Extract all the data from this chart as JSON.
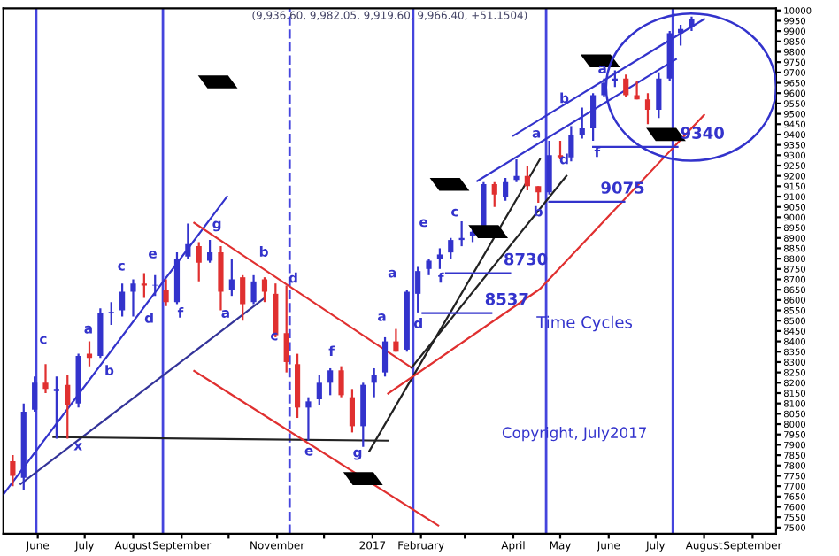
{
  "chart_data": {
    "type": "candlestick",
    "title": "(9,936.60, 9,982.05, 9,919.60, 9,966.40, +51.1504)",
    "x": [
      "2016-05-16",
      "2016-05-23",
      "2016-05-30",
      "2016-06-06",
      "2016-06-13",
      "2016-06-20",
      "2016-06-27",
      "2016-07-04",
      "2016-07-11",
      "2016-07-18",
      "2016-07-25",
      "2016-08-01",
      "2016-08-08",
      "2016-08-15",
      "2016-08-22",
      "2016-08-29",
      "2016-09-05",
      "2016-09-12",
      "2016-09-19",
      "2016-09-26",
      "2016-10-03",
      "2016-10-10",
      "2016-10-17",
      "2016-10-24",
      "2016-10-31",
      "2016-11-07",
      "2016-11-14",
      "2016-11-21",
      "2016-11-28",
      "2016-12-05",
      "2016-12-12",
      "2016-12-19",
      "2016-12-26",
      "2017-01-02",
      "2017-01-09",
      "2017-01-16",
      "2017-01-23",
      "2017-01-30",
      "2017-02-06",
      "2017-02-13",
      "2017-02-20",
      "2017-02-27",
      "2017-03-06",
      "2017-03-13",
      "2017-03-20",
      "2017-03-27",
      "2017-04-03",
      "2017-04-10",
      "2017-04-17",
      "2017-04-24",
      "2017-05-01",
      "2017-05-08",
      "2017-05-15",
      "2017-05-22",
      "2017-05-29",
      "2017-06-05",
      "2017-06-12",
      "2017-06-19",
      "2017-06-26",
      "2017-07-03",
      "2017-07-10",
      "2017-07-17",
      "2017-07-24"
    ],
    "ohlc": [
      [
        7820,
        7850,
        7700,
        7750
      ],
      [
        7740,
        8100,
        7680,
        8060
      ],
      [
        8070,
        8230,
        8060,
        8200
      ],
      [
        8200,
        8290,
        8150,
        8170
      ],
      [
        8160,
        8230,
        7930,
        8170
      ],
      [
        8190,
        8240,
        7930,
        8090
      ],
      [
        8100,
        8340,
        8080,
        8330
      ],
      [
        8340,
        8400,
        8280,
        8320
      ],
      [
        8330,
        8560,
        8320,
        8540
      ],
      [
        8540,
        8590,
        8480,
        8540
      ],
      [
        8550,
        8680,
        8520,
        8640
      ],
      [
        8640,
        8700,
        8520,
        8680
      ],
      [
        8680,
        8730,
        8610,
        8670
      ],
      [
        8670,
        8720,
        8620,
        8670
      ],
      [
        8650,
        8700,
        8570,
        8590
      ],
      [
        8590,
        8830,
        8580,
        8800
      ],
      [
        8810,
        8970,
        8800,
        8870
      ],
      [
        8860,
        8880,
        8690,
        8780
      ],
      [
        8790,
        8890,
        8780,
        8830
      ],
      [
        8830,
        8860,
        8550,
        8640
      ],
      [
        8650,
        8800,
        8620,
        8700
      ],
      [
        8710,
        8720,
        8500,
        8580
      ],
      [
        8590,
        8720,
        8580,
        8690
      ],
      [
        8700,
        8710,
        8590,
        8640
      ],
      [
        8630,
        8680,
        8420,
        8430
      ],
      [
        8440,
        8670,
        8250,
        8300
      ],
      [
        8290,
        8340,
        8030,
        8080
      ],
      [
        8080,
        8130,
        7920,
        8110
      ],
      [
        8120,
        8240,
        8090,
        8200
      ],
      [
        8200,
        8270,
        8140,
        8260
      ],
      [
        8260,
        8280,
        8130,
        8140
      ],
      [
        8130,
        8170,
        7960,
        7990
      ],
      [
        7990,
        8200,
        7890,
        8190
      ],
      [
        8200,
        8270,
        8130,
        8240
      ],
      [
        8250,
        8420,
        8230,
        8400
      ],
      [
        8400,
        8460,
        8350,
        8350
      ],
      [
        8360,
        8650,
        8350,
        8640
      ],
      [
        8630,
        8760,
        8540,
        8740
      ],
      [
        8750,
        8800,
        8720,
        8790
      ],
      [
        8800,
        8850,
        8750,
        8820
      ],
      [
        8830,
        8900,
        8800,
        8890
      ],
      [
        8890,
        8980,
        8860,
        8900
      ],
      [
        8910,
        8950,
        8880,
        8930
      ],
      [
        8950,
        9170,
        8940,
        9160
      ],
      [
        9160,
        9170,
        9050,
        9110
      ],
      [
        9100,
        9190,
        9080,
        9170
      ],
      [
        9180,
        9280,
        9170,
        9200
      ],
      [
        9200,
        9250,
        9130,
        9150
      ],
      [
        9150,
        9150,
        9070,
        9120
      ],
      [
        9120,
        9370,
        9110,
        9300
      ],
      [
        9300,
        9370,
        9280,
        9290
      ],
      [
        9290,
        9440,
        9270,
        9400
      ],
      [
        9400,
        9530,
        9380,
        9430
      ],
      [
        9430,
        9600,
        9370,
        9590
      ],
      [
        9590,
        9670,
        9580,
        9650
      ],
      [
        9660,
        9710,
        9630,
        9670
      ],
      [
        9670,
        9690,
        9580,
        9590
      ],
      [
        9590,
        9660,
        9570,
        9570
      ],
      [
        9570,
        9600,
        9450,
        9520
      ],
      [
        9520,
        9700,
        9480,
        9670
      ],
      [
        9670,
        9900,
        9660,
        9890
      ],
      [
        9890,
        9930,
        9830,
        9910
      ],
      [
        9920,
        9970,
        9900,
        9960
      ]
    ],
    "colors": [
      "#e03030",
      "#3333cc",
      "#3333cc",
      "#e03030",
      "#3333cc",
      "#e03030",
      "#3333cc",
      "#e03030",
      "#3333cc",
      "#3333cc",
      "#3333cc",
      "#3333cc",
      "#e03030",
      "#3333cc",
      "#e03030",
      "#3333cc",
      "#3333cc",
      "#e03030",
      "#3333cc",
      "#e03030",
      "#3333cc",
      "#e03030",
      "#3333cc",
      "#e03030",
      "#e03030",
      "#e03030",
      "#e03030",
      "#3333cc",
      "#3333cc",
      "#3333cc",
      "#e03030",
      "#e03030",
      "#3333cc",
      "#3333cc",
      "#3333cc",
      "#e03030",
      "#3333cc",
      "#3333cc",
      "#3333cc",
      "#3333cc",
      "#3333cc",
      "#3333cc",
      "#3333cc",
      "#3333cc",
      "#e03030",
      "#3333cc",
      "#3333cc",
      "#e03030",
      "#e03030",
      "#3333cc",
      "#e03030",
      "#3333cc",
      "#3333cc",
      "#3333cc",
      "#3333cc",
      "#3333cc",
      "#e03030",
      "#e03030",
      "#e03030",
      "#3333cc",
      "#3333cc",
      "#3333cc",
      "#3333cc"
    ],
    "series": [
      {
        "type": "line",
        "color": "#3333cc",
        "x": [
          "2016-05-10",
          "2016-09-30"
        ],
        "values": [
          7660,
          9100
        ]
      },
      {
        "type": "line",
        "color": "#333399",
        "x": [
          "2016-05-21",
          "2016-10-24"
        ],
        "values": [
          7710,
          8610
        ]
      },
      {
        "type": "line",
        "color": "#222222",
        "x": [
          "2016-06-11",
          "2017-01-11"
        ],
        "values": [
          7937,
          7920
        ]
      },
      {
        "type": "line",
        "color": "#e03030",
        "x": [
          "2016-09-09",
          "2017-01-26"
        ],
        "values": [
          8973,
          8273
        ]
      },
      {
        "type": "line",
        "color": "#e03030",
        "x": [
          "2016-09-09",
          "2017-02-12"
        ],
        "values": [
          8257,
          7510
        ]
      },
      {
        "type": "line",
        "color": "#222222",
        "x": [
          "2016-12-30",
          "2017-04-18"
        ],
        "values": [
          7870,
          9280
        ]
      },
      {
        "type": "line",
        "color": "#222222",
        "x": [
          "2017-01-26",
          "2017-05-05"
        ],
        "values": [
          8273,
          9200
        ]
      },
      {
        "type": "line",
        "color": "#e03030",
        "x": [
          "2017-01-11",
          "2017-04-18",
          "2017-08-01"
        ],
        "values": [
          8148,
          8653,
          9495
        ]
      },
      {
        "type": "line",
        "color": "#3333cc",
        "x": [
          "2017-04-01",
          "2017-08-01"
        ],
        "values": [
          9394,
          9958
        ]
      },
      {
        "type": "line",
        "color": "#3333cc",
        "x": [
          "2017-03-09",
          "2017-07-14"
        ],
        "values": [
          9175,
          9764
        ]
      },
      {
        "type": "line",
        "color": "#3333cc",
        "x": [
          "2017-02-17",
          "2017-03-30"
        ],
        "values": [
          8730,
          8730
        ]
      },
      {
        "type": "line",
        "color": "#3333cc",
        "x": [
          "2017-02-02",
          "2017-03-18"
        ],
        "values": [
          8537,
          8537
        ]
      },
      {
        "type": "line",
        "color": "#3333cc",
        "x": [
          "2017-04-24",
          "2017-06-11"
        ],
        "values": [
          9075,
          9075
        ]
      },
      {
        "type": "line",
        "color": "#3333cc",
        "x": [
          "2017-05-22",
          "2017-07-15"
        ],
        "values": [
          9340,
          9340
        ]
      }
    ],
    "ref_lines": [
      {
        "axis": "x",
        "value": "2016-05-31",
        "color": "#4444dd"
      },
      {
        "axis": "x",
        "value": "2016-08-20",
        "color": "#4444dd"
      },
      {
        "axis": "x",
        "value": "2016-11-09",
        "color": "#4444dd",
        "line_style": "dashed"
      },
      {
        "axis": "x",
        "value": "2017-01-27",
        "color": "#4444dd"
      },
      {
        "axis": "x",
        "value": "2017-04-22",
        "color": "#4444dd"
      },
      {
        "axis": "x",
        "value": "2017-07-12",
        "color": "#4444dd"
      }
    ],
    "annotations": [
      "c",
      "a",
      "c",
      "e",
      "d",
      "f",
      "g",
      "b",
      "d",
      "a",
      "c",
      "b",
      "x",
      "e",
      "g",
      "f",
      "a",
      "a",
      "d",
      "f",
      "e",
      "c",
      "b",
      "d",
      "f",
      "a",
      "b",
      "a",
      {
        "text": "8730",
        "x": "2017-03-21",
        "y": 8730
      },
      {
        "text": "8537",
        "x": "2017-03-09",
        "y": 8537
      },
      {
        "text": "9075",
        "x": "2017-05-22",
        "y": 9075
      },
      {
        "text": "9340",
        "x": "2017-07-12",
        "y": 9340
      },
      "Time Cycles",
      "Copyright, July2017"
    ],
    "xlim": [
      "2016-05-10",
      "2017-09-16"
    ],
    "xticks": [
      {
        "value": "2016-06-01",
        "label": "June"
      },
      {
        "value": "2016-07-01",
        "label": "July"
      },
      {
        "value": "2016-08-01",
        "label": "August"
      },
      {
        "value": "2016-09-01",
        "label": "September"
      },
      {
        "value": "2016-10-01",
        "label": null
      },
      {
        "value": "2016-11-01",
        "label": "November"
      },
      {
        "value": "2016-12-01",
        "label": null
      },
      {
        "value": "2017-01-01",
        "label": "2017"
      },
      {
        "value": "2017-02-01",
        "label": "February"
      },
      {
        "value": "2017-03-01",
        "label": null
      },
      {
        "value": "2017-04-01",
        "label": "April"
      },
      {
        "value": "2017-05-01",
        "label": "May"
      },
      {
        "value": "2017-06-01",
        "label": "June"
      },
      {
        "value": "2017-07-01",
        "label": "July"
      },
      {
        "value": "2017-08-01",
        "label": "August"
      },
      {
        "value": "2017-09-01",
        "label": "September"
      }
    ],
    "ylim": [
      7470,
      10010
    ],
    "yticks": [
      7500,
      7550,
      7600,
      7650,
      7700,
      7750,
      7800,
      7850,
      7900,
      7950,
      8000,
      8050,
      8100,
      8150,
      8200,
      8250,
      8300,
      8350,
      8400,
      8450,
      8500,
      8550,
      8600,
      8650,
      8700,
      8750,
      8800,
      8850,
      8900,
      8950,
      9000,
      9050,
      9100,
      9150,
      9200,
      9250,
      9300,
      9350,
      9400,
      9450,
      9500,
      9550,
      9600,
      9650,
      9700,
      9750,
      9800,
      9850,
      9900,
      9950,
      10000
    ],
    "grid": false
  }
}
